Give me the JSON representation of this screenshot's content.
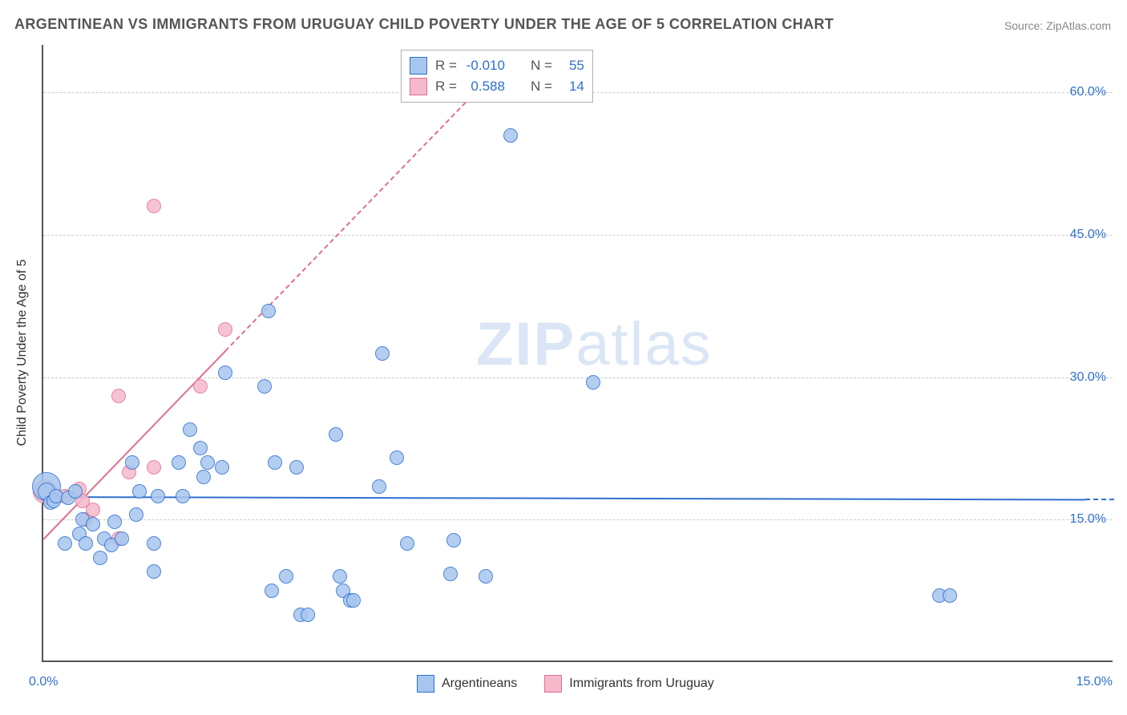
{
  "title": "ARGENTINEAN VS IMMIGRANTS FROM URUGUAY CHILD POVERTY UNDER THE AGE OF 5 CORRELATION CHART",
  "source": "Source: ZipAtlas.com",
  "ylabel": "Child Poverty Under the Age of 5",
  "watermark_zip": "ZIP",
  "watermark_atlas": "atlas",
  "chart": {
    "type": "scatter",
    "xlim": [
      0.0,
      15.0
    ],
    "ylim": [
      0.0,
      65.0
    ],
    "y_ticks": [
      15.0,
      30.0,
      45.0,
      60.0
    ],
    "y_tick_labels": [
      "15.0%",
      "30.0%",
      "45.0%",
      "60.0%"
    ],
    "x_left_label": "0.0%",
    "x_right_label": "15.0%",
    "background_color": "#ffffff",
    "grid_color": "#cccccc",
    "axis_color": "#555555",
    "tick_label_color": "#2f6fd0",
    "tick_fontsize": 16,
    "marker_radius": 9,
    "marker_stroke": 1.3,
    "marker_fill_opacity": 0.28,
    "watermark_color": "#d6e4f5"
  },
  "series": {
    "argentineans": {
      "label": "Argentineans",
      "color_stroke": "#2f6fd0",
      "color_fill": "#a7c6ef",
      "R": "-0.010",
      "N": "55",
      "trend": {
        "x1": 0.0,
        "y1": 17.5,
        "x2": 15.0,
        "y2": 17.2,
        "solid_until_x": 14.6
      },
      "points": [
        {
          "x": 0.05,
          "y": 18.5,
          "r": 18
        },
        {
          "x": 0.05,
          "y": 18.0,
          "r": 11
        },
        {
          "x": 0.1,
          "y": 16.8
        },
        {
          "x": 0.15,
          "y": 17.0
        },
        {
          "x": 0.18,
          "y": 17.5
        },
        {
          "x": 0.3,
          "y": 12.5
        },
        {
          "x": 0.35,
          "y": 17.3
        },
        {
          "x": 0.45,
          "y": 18.0
        },
        {
          "x": 0.5,
          "y": 13.5
        },
        {
          "x": 0.55,
          "y": 15.0
        },
        {
          "x": 0.6,
          "y": 12.5
        },
        {
          "x": 0.7,
          "y": 14.5
        },
        {
          "x": 0.8,
          "y": 11.0
        },
        {
          "x": 0.85,
          "y": 13.0
        },
        {
          "x": 0.95,
          "y": 12.3
        },
        {
          "x": 1.0,
          "y": 14.8
        },
        {
          "x": 1.1,
          "y": 13.0
        },
        {
          "x": 1.25,
          "y": 21.0
        },
        {
          "x": 1.3,
          "y": 15.5
        },
        {
          "x": 1.35,
          "y": 18.0
        },
        {
          "x": 1.55,
          "y": 12.5
        },
        {
          "x": 1.6,
          "y": 17.5
        },
        {
          "x": 1.55,
          "y": 9.5
        },
        {
          "x": 1.9,
          "y": 21.0
        },
        {
          "x": 1.95,
          "y": 17.5
        },
        {
          "x": 2.05,
          "y": 24.5
        },
        {
          "x": 2.2,
          "y": 22.5
        },
        {
          "x": 2.25,
          "y": 19.5
        },
        {
          "x": 2.3,
          "y": 21.0
        },
        {
          "x": 2.5,
          "y": 20.5
        },
        {
          "x": 2.55,
          "y": 30.5
        },
        {
          "x": 3.1,
          "y": 29.0
        },
        {
          "x": 3.15,
          "y": 37.0
        },
        {
          "x": 3.2,
          "y": 7.5
        },
        {
          "x": 3.25,
          "y": 21.0
        },
        {
          "x": 3.4,
          "y": 9.0
        },
        {
          "x": 3.55,
          "y": 20.5
        },
        {
          "x": 3.6,
          "y": 5.0
        },
        {
          "x": 3.7,
          "y": 5.0
        },
        {
          "x": 4.1,
          "y": 24.0
        },
        {
          "x": 4.15,
          "y": 9.0
        },
        {
          "x": 4.2,
          "y": 7.5
        },
        {
          "x": 4.3,
          "y": 6.5
        },
        {
          "x": 4.35,
          "y": 6.5
        },
        {
          "x": 4.7,
          "y": 18.5
        },
        {
          "x": 4.75,
          "y": 32.5
        },
        {
          "x": 4.95,
          "y": 21.5
        },
        {
          "x": 5.1,
          "y": 12.5
        },
        {
          "x": 5.7,
          "y": 9.3
        },
        {
          "x": 5.75,
          "y": 12.8
        },
        {
          "x": 6.2,
          "y": 9.0
        },
        {
          "x": 6.55,
          "y": 55.5
        },
        {
          "x": 7.7,
          "y": 29.5
        },
        {
          "x": 12.55,
          "y": 7.0
        },
        {
          "x": 12.7,
          "y": 7.0
        }
      ]
    },
    "uruguay": {
      "label": "Immigrants from Uruguay",
      "color_stroke": "#e26f8f",
      "color_fill": "#f5b9cb",
      "R": "0.588",
      "N": "14",
      "trend": {
        "x1": 0.0,
        "y1": 13.0,
        "x2": 6.3,
        "y2": 62.0,
        "solid_until_x": 2.55
      },
      "points": [
        {
          "x": 0.02,
          "y": 18.0,
          "r": 15
        },
        {
          "x": 0.1,
          "y": 17.2
        },
        {
          "x": 0.3,
          "y": 17.5
        },
        {
          "x": 0.5,
          "y": 18.2
        },
        {
          "x": 0.55,
          "y": 17.0
        },
        {
          "x": 0.6,
          "y": 15.0
        },
        {
          "x": 0.7,
          "y": 16.0
        },
        {
          "x": 1.05,
          "y": 28.0
        },
        {
          "x": 1.05,
          "y": 13.0
        },
        {
          "x": 1.2,
          "y": 20.0
        },
        {
          "x": 1.55,
          "y": 48.0
        },
        {
          "x": 1.55,
          "y": 20.5
        },
        {
          "x": 2.2,
          "y": 29.0
        },
        {
          "x": 2.55,
          "y": 35.0
        }
      ]
    }
  },
  "stats_box": {
    "rows": [
      {
        "series": "argentineans",
        "r_label": "R =",
        "n_label": "N ="
      },
      {
        "series": "uruguay",
        "r_label": "R =",
        "n_label": "N ="
      }
    ]
  },
  "legend": [
    {
      "series": "argentineans"
    },
    {
      "series": "uruguay"
    }
  ]
}
